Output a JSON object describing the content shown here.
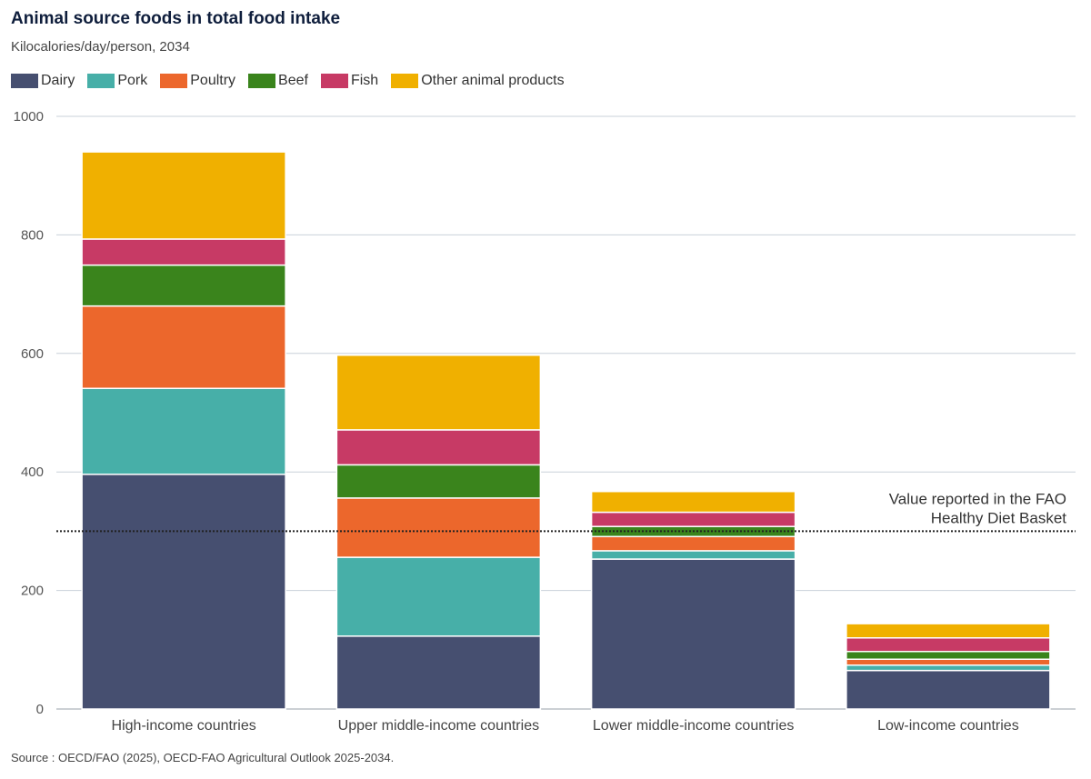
{
  "title": "Animal source foods in total food intake",
  "subtitle": "Kilocalories/day/person, 2034",
  "source": "Source : OECD/FAO (2025), OECD-FAO Agricultural Outlook 2025-2034.",
  "legend": [
    {
      "name": "Dairy",
      "color": "#464f70"
    },
    {
      "name": "Pork",
      "color": "#47afa8"
    },
    {
      "name": "Poultry",
      "color": "#ec672c"
    },
    {
      "name": "Beef",
      "color": "#3a841c"
    },
    {
      "name": "Fish",
      "color": "#c73a65"
    },
    {
      "name": "Other animal products",
      "color": "#f0b000"
    }
  ],
  "chart_data": {
    "type": "bar",
    "stacked": true,
    "title": "Animal source foods in total food intake",
    "subtitle": "Kilocalories/day/person, 2034",
    "xlabel": "",
    "ylabel": "",
    "ylim": [
      0,
      1000
    ],
    "yticks": [
      0,
      200,
      400,
      600,
      800,
      1000
    ],
    "grid": true,
    "legend_position": "top-left",
    "categories": [
      "High-income countries",
      "Upper middle-income countries",
      "Lower middle-income countries",
      "Low-income countries"
    ],
    "series": [
      {
        "name": "Dairy",
        "color": "#464f70",
        "values": [
          396,
          123,
          253,
          65
        ]
      },
      {
        "name": "Pork",
        "color": "#47afa8",
        "values": [
          145,
          133,
          14,
          9
        ]
      },
      {
        "name": "Poultry",
        "color": "#ec672c",
        "values": [
          139,
          100,
          24,
          10
        ]
      },
      {
        "name": "Beef",
        "color": "#3a841c",
        "values": [
          69,
          56,
          17,
          13
        ]
      },
      {
        "name": "Fish",
        "color": "#c73a65",
        "values": [
          44,
          59,
          24,
          23
        ]
      },
      {
        "name": "Other animal products",
        "color": "#f0b000",
        "values": [
          147,
          126,
          35,
          24
        ]
      }
    ],
    "reference_line": {
      "value": 300,
      "label_lines": [
        "Value reported in the FAO",
        "Healthy Diet Basket"
      ]
    }
  }
}
